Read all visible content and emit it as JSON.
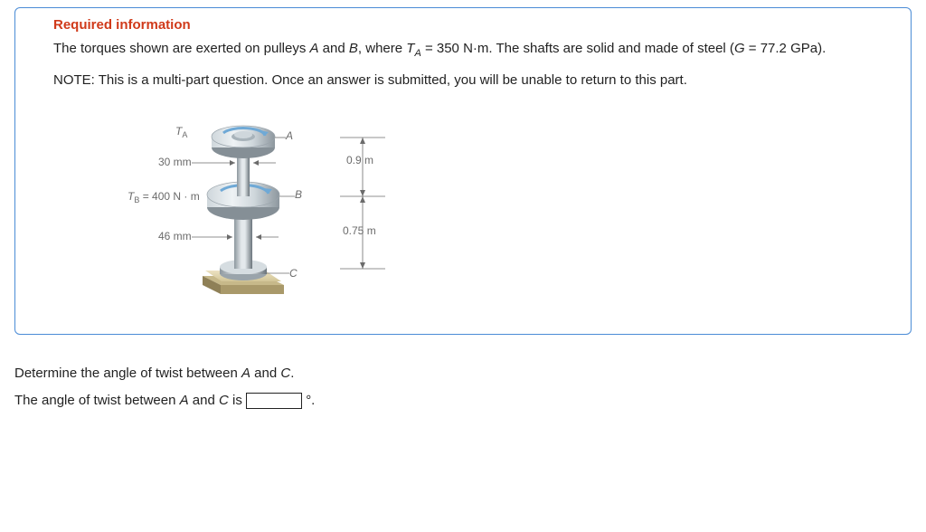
{
  "required_label": "Required information",
  "stem_html": "The torques shown are exerted on pulleys <span class='ital'>A</span> and <span class='ital'>B</span>, where <span class='ital'>T</span><span class='sub'>A</span> = 350 N·m. The shafts are solid and made of steel (<span class='ital'>G</span> = 77.2 GPa).",
  "note": "NOTE: This is a multi-part question. Once an answer is submitted, you will be unable to return to this part.",
  "figure_labels": {
    "T_A": "T",
    "T_A_sub": "A",
    "A": "A",
    "d1_label": "30 mm",
    "len1": "0.9 m",
    "T_B_label": "T",
    "T_B_sub": "B",
    "T_B_val": " = 400 N · m",
    "B": "B",
    "d2_label": "46 mm",
    "len2": "0.75 m",
    "C": "C"
  },
  "question_line": "Determine the angle of twist between <span class='ital'>A</span> and <span class='ital'>C</span>.",
  "answer_line_prefix": "The angle of twist between <span class='ital'>A</span> and <span class='ital'>C</span> is ",
  "answer_unit": "°.",
  "colors": {
    "card_border": "#4b8cd6",
    "required": "#d03a1a",
    "text": "#222222",
    "fig_text": "#6b6b6b",
    "fig_line": "#6b6b6b",
    "metal_light": "#e8ecef",
    "metal_mid": "#b8c4cc",
    "metal_dark": "#7f8b93",
    "metal_shade": "#5b656c",
    "accent_blue": "#6fa9d6",
    "base_tan_light": "#e6dbb8",
    "base_tan_dark": "#b8a978"
  }
}
